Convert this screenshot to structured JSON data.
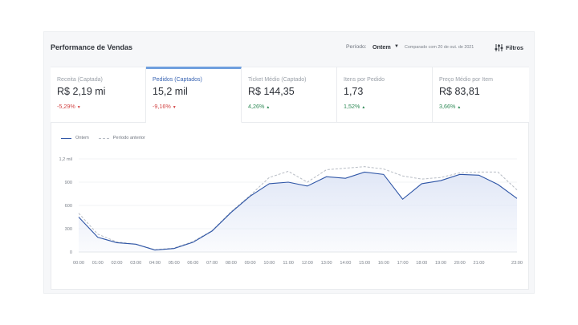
{
  "header": {
    "title": "Performance de Vendas",
    "period_label": "Período:",
    "period_value": "Ontem",
    "compare_text": "Comparado com 20 de out. de 2021",
    "filters_label": "Filtros"
  },
  "kpis": [
    {
      "label": "Receita (Captada)",
      "value": "R$ 2,19 mi",
      "delta": "-5,29%",
      "trend": "down",
      "active": false
    },
    {
      "label": "Pedidos (Captados)",
      "value": "15,2 mil",
      "delta": "-9,16%",
      "trend": "down",
      "active": true
    },
    {
      "label": "Ticket Médio (Captado)",
      "value": "R$ 144,35",
      "delta": "4,26%",
      "trend": "up",
      "active": false
    },
    {
      "label": "Itens por Pedido",
      "value": "1,73",
      "delta": "1,52%",
      "trend": "up",
      "active": false
    },
    {
      "label": "Preço Médio por Item",
      "value": "R$ 83,81",
      "delta": "3,66%",
      "trend": "up",
      "active": false
    }
  ],
  "arrows": {
    "up": "▲",
    "down": "▼"
  },
  "legend": {
    "current": "Ontem",
    "previous": "Período anterior"
  },
  "colors": {
    "current": "#2e55a6",
    "previous": "#b7bcc4",
    "area": "#dfe6f6",
    "negative": "#d24545",
    "positive": "#2f8a57"
  },
  "chart_data": {
    "type": "area",
    "x": [
      "00:00",
      "01:00",
      "02:00",
      "03:00",
      "04:00",
      "05:00",
      "06:00",
      "07:00",
      "08:00",
      "09:00",
      "10:00",
      "11:00",
      "12:00",
      "13:00",
      "14:00",
      "15:00",
      "16:00",
      "17:00",
      "18:00",
      "19:00",
      "20:00",
      "21:00",
      "22:00",
      "23:00"
    ],
    "x_tick_labels": [
      "00:00",
      "01:00",
      "02:00",
      "03:00",
      "04:00",
      "05:00",
      "06:00",
      "07:00",
      "08:00",
      "09:00",
      "10:00",
      "11:00",
      "12:00",
      "13:00",
      "14:00",
      "15:00",
      "16:00",
      "17:00",
      "18:00",
      "19:00",
      "20:00",
      "21:00",
      "",
      "23:00"
    ],
    "y_ticks": [
      0,
      300,
      600,
      900,
      1200
    ],
    "y_tick_labels": [
      "0",
      "300",
      "600",
      "900",
      "1,2 mil"
    ],
    "ylim": [
      0,
      1200
    ],
    "grid": true,
    "series": [
      {
        "name": "Ontem",
        "style": "solid",
        "fill": true,
        "values": [
          450,
          190,
          120,
          100,
          25,
          45,
          125,
          270,
          510,
          720,
          880,
          900,
          850,
          970,
          950,
          1030,
          1000,
          680,
          880,
          920,
          1000,
          990,
          870,
          690
        ]
      },
      {
        "name": "Período anterior",
        "style": "dashed",
        "fill": false,
        "values": [
          500,
          230,
          130,
          100,
          30,
          50,
          135,
          275,
          520,
          730,
          960,
          1040,
          900,
          1060,
          1080,
          1100,
          1070,
          980,
          940,
          960,
          1020,
          1030,
          1030,
          800
        ]
      }
    ]
  }
}
